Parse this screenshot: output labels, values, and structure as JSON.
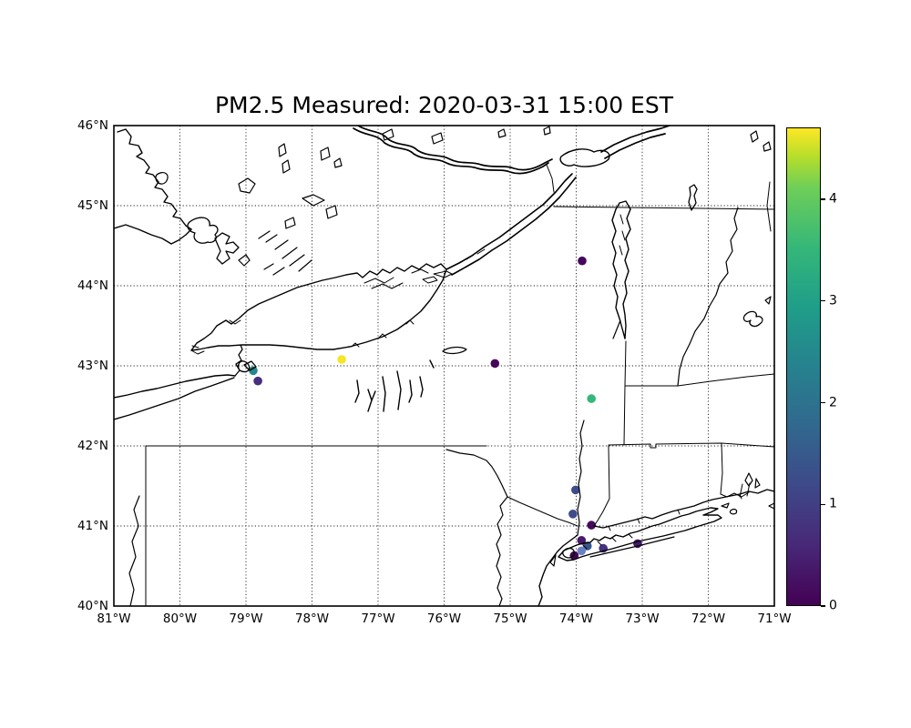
{
  "title": "PM2.5 Measured: 2020-03-31 15:00 EST",
  "axes": {
    "x_ticks": [
      "81°W",
      "80°W",
      "79°W",
      "78°W",
      "77°W",
      "76°W",
      "75°W",
      "74°W",
      "73°W",
      "72°W",
      "71°W"
    ],
    "y_ticks": [
      "46°N",
      "45°N",
      "44°N",
      "43°N",
      "42°N",
      "41°N",
      "40°N"
    ],
    "lon_west": 81,
    "lon_east": 71,
    "lat_south": 40,
    "lat_north": 46
  },
  "colorbar": {
    "ticks": [
      "0",
      "1",
      "2",
      "3",
      "4"
    ],
    "vmin": 0,
    "vmax": 4.707,
    "colormap": "viridis",
    "gradient": [
      {
        "t": 0.0,
        "c": "#440154"
      },
      {
        "t": 0.125,
        "c": "#482878"
      },
      {
        "t": 0.25,
        "c": "#3e4989"
      },
      {
        "t": 0.375,
        "c": "#31688e"
      },
      {
        "t": 0.5,
        "c": "#26828e"
      },
      {
        "t": 0.625,
        "c": "#1f9e89"
      },
      {
        "t": 0.75,
        "c": "#35b779"
      },
      {
        "t": 0.875,
        "c": "#6ece58"
      },
      {
        "t": 0.94,
        "c": "#b5de2b"
      },
      {
        "t": 1.0,
        "c": "#fde725"
      }
    ]
  },
  "chart_data": {
    "type": "scatter",
    "projection": "PlateCarree",
    "title": "PM2.5 Measured: 2020-03-31 15:00 EST",
    "xlim": [
      -81,
      -71
    ],
    "ylim": [
      40,
      46
    ],
    "grid": "dotted, 1 degree spacing",
    "colormap": "viridis",
    "color_range": [
      0,
      4.707
    ],
    "legend_position": "right colorbar",
    "points": [
      {
        "lon": -77.55,
        "lat": 43.08,
        "value": 4.7,
        "color": "#f5e626"
      },
      {
        "lon": -78.89,
        "lat": 42.94,
        "value": 2.5,
        "color": "#23888e"
      },
      {
        "lon": -78.82,
        "lat": 42.81,
        "value": 0.8,
        "color": "#472f7d"
      },
      {
        "lon": -75.23,
        "lat": 43.03,
        "value": 0.2,
        "color": "#46085c"
      },
      {
        "lon": -73.91,
        "lat": 44.31,
        "value": 0.2,
        "color": "#46085c"
      },
      {
        "lon": -73.77,
        "lat": 42.59,
        "value": 3.4,
        "color": "#35b779"
      },
      {
        "lon": -74.01,
        "lat": 41.45,
        "value": 1.3,
        "color": "#3e4c8a"
      },
      {
        "lon": -74.05,
        "lat": 41.15,
        "value": 1.3,
        "color": "#3e4c8a"
      },
      {
        "lon": -73.77,
        "lat": 41.01,
        "value": 0.1,
        "color": "#450a5c"
      },
      {
        "lon": -73.92,
        "lat": 40.82,
        "value": 0.3,
        "color": "#481a6c"
      },
      {
        "lon": -73.83,
        "lat": 40.75,
        "value": 1.5,
        "color": "#39568c"
      },
      {
        "lon": -73.92,
        "lat": 40.69,
        "value": 1.7,
        "color": "#6c80c4"
      },
      {
        "lon": -74.03,
        "lat": 40.63,
        "value": 0.0,
        "color": "#440154"
      },
      {
        "lon": -73.59,
        "lat": 40.72,
        "value": 0.8,
        "color": "#46327e"
      },
      {
        "lon": -73.07,
        "lat": 40.78,
        "value": 0.3,
        "color": "#481769"
      }
    ]
  }
}
